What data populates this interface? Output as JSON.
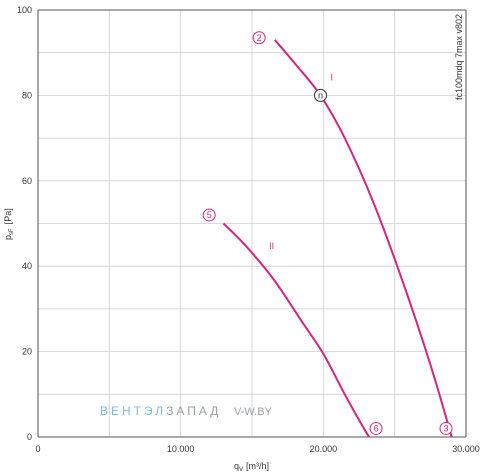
{
  "chart_data": {
    "type": "line",
    "title": "",
    "xlabel_main": "q",
    "xlabel_sub": "V",
    "xlabel_unit": "[m³/h]",
    "ylabel_main": "p",
    "ylabel_sub": "sF",
    "ylabel_unit": "[Pa]",
    "xlim": [
      0,
      30000
    ],
    "ylim": [
      0,
      100
    ],
    "x_ticks": [
      0,
      10000,
      20000,
      30000
    ],
    "x_tick_labels": [
      "0",
      "10.000",
      "20.000",
      "30.000"
    ],
    "y_ticks": [
      0,
      20,
      40,
      60,
      80,
      100
    ],
    "y_tick_labels": [
      "0",
      "20",
      "40",
      "60",
      "80",
      "100"
    ],
    "x_grid_step": 5000,
    "y_grid_step": 10,
    "grid": true,
    "side_note": "fc100mdq 7max v802",
    "series": [
      {
        "name": "I",
        "color": "#d6257f",
        "x": [
          16600,
          18000,
          19800,
          21500,
          23500,
          25500,
          27500,
          29000
        ],
        "y": [
          93,
          87.5,
          80,
          70,
          55,
          37,
          17,
          0
        ]
      },
      {
        "name": "II",
        "color": "#d6257f",
        "x": [
          13000,
          14500,
          16500,
          18500,
          20000,
          21500,
          22500,
          23200
        ],
        "y": [
          50,
          45,
          37,
          27,
          19.5,
          10,
          4,
          0
        ]
      }
    ],
    "markers": [
      {
        "label": "2",
        "x": 15500,
        "y": 93.5
      },
      {
        "label": "n",
        "x": 19800,
        "y": 80
      },
      {
        "label": "3",
        "x": 28600,
        "y": 2
      },
      {
        "label": "5",
        "x": 12000,
        "y": 52
      },
      {
        "label": "6",
        "x": 23700,
        "y": 2
      }
    ],
    "curve_labels": [
      {
        "text": "I",
        "x": 20500,
        "y": 83.5
      },
      {
        "text": "II",
        "x": 16200,
        "y": 44
      }
    ]
  },
  "watermark": {
    "brand_light": "ВЕНТЭЛ",
    "brand_dark": "ЗАПАД",
    "domain": "V-W.BY"
  },
  "colors": {
    "curve": "#d6257f",
    "grid": "#cfcfcf",
    "axis": "#555555",
    "watermark_blue": "#7fb8e2",
    "watermark_gray": "#9aa0a6",
    "marker_n": "#333333"
  }
}
